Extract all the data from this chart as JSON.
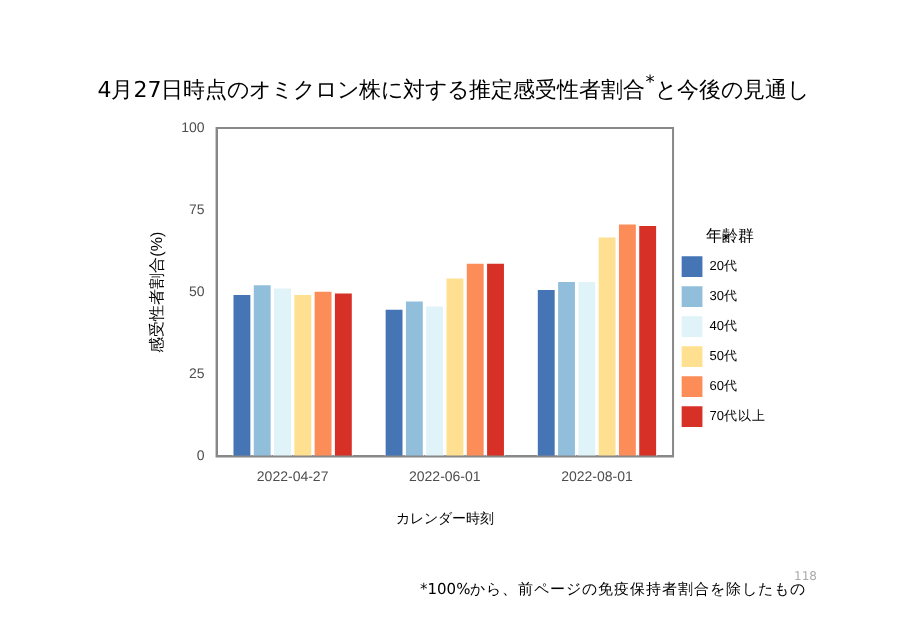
{
  "chart_data": {
    "type": "bar",
    "title": "4月27日時点のオミクロン株に対する推定感受性者割合$^{*}$と今後の見通し",
    "xlabel": "カレンダー時刻",
    "ylabel": "感受性者割合(%)",
    "legend_title": "年齢群",
    "categories": [
      "2022-04-27",
      "2022-06-01",
      "2022-08-01"
    ],
    "series": [
      {
        "name": "20代",
        "color": "#4575b4",
        "values": [
          49.5,
          45,
          51
        ]
      },
      {
        "name": "30代",
        "color": "#91bfdb",
        "values": [
          52.5,
          47.5,
          53.5
        ]
      },
      {
        "name": "40代",
        "color": "#e0f3f8",
        "values": [
          51.5,
          46,
          53.5
        ]
      },
      {
        "name": "50代",
        "color": "#fee090",
        "values": [
          49.5,
          54.5,
          67
        ]
      },
      {
        "name": "60代",
        "color": "#fc8d59",
        "values": [
          50.5,
          59,
          71
        ]
      },
      {
        "name": "70代以上",
        "color": "#d73027",
        "values": [
          50,
          59,
          70.5
        ]
      }
    ],
    "ylim": [
      0,
      100
    ],
    "yticks": [
      0,
      25,
      50,
      75,
      100
    ],
    "grid": false,
    "legend": "right",
    "annotations": [
      "*100%から、前ページの免疫保持者割合を除したもの",
      "118"
    ]
  }
}
